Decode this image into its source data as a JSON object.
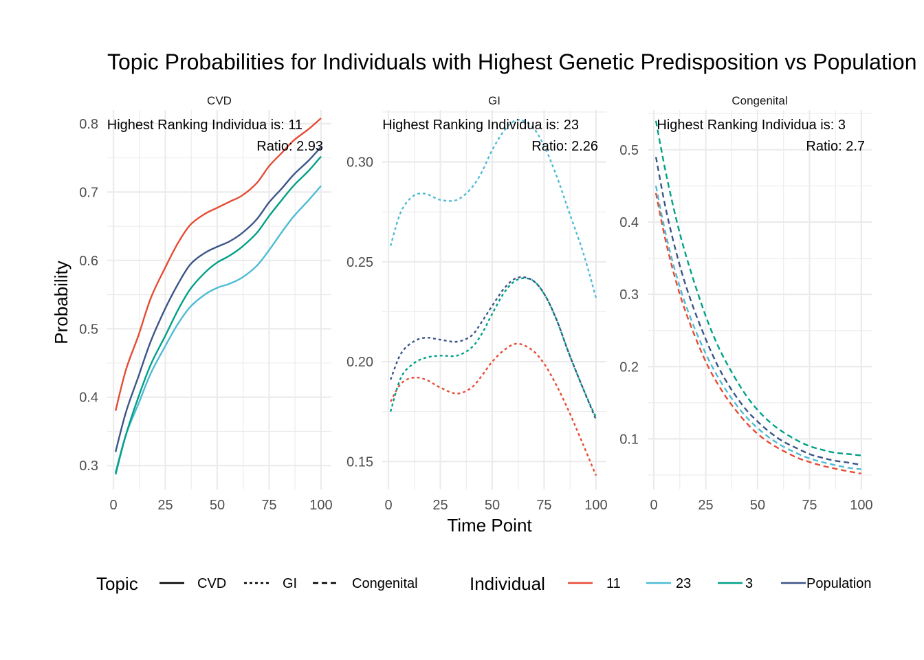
{
  "chart_data": {
    "type": "line",
    "title": "Topic Probabilities for Individuals with Highest Genetic Predisposition vs Population",
    "xlabel": "Time Point",
    "ylabel": "Probability",
    "grid": true,
    "legend_placement": "bottom",
    "legends": {
      "topic": {
        "title": "Topic",
        "entries": [
          {
            "label": "CVD",
            "linetype": "solid"
          },
          {
            "label": "GI",
            "linetype": "dotted"
          },
          {
            "label": "Congenital",
            "linetype": "dashed"
          }
        ]
      },
      "individual": {
        "title": "Individual",
        "entries": [
          {
            "label": "11",
            "color": "#E64B35"
          },
          {
            "label": "23",
            "color": "#4DBBD5"
          },
          {
            "label": "3",
            "color": "#00A087"
          },
          {
            "label": "Population",
            "color": "#3C5488"
          }
        ]
      }
    },
    "panels": [
      {
        "strip": "CVD",
        "linetype": "solid",
        "annotation_line1": "Highest Ranking Individua is: 11",
        "annotation_line2": "Ratio: 2.93",
        "xlim": [
          -3,
          105
        ],
        "ylim": [
          0.265,
          0.82
        ],
        "xticks": [
          0,
          25,
          50,
          75,
          100
        ],
        "xtick_labels": [
          "0",
          "25",
          "50",
          "75",
          "100"
        ],
        "yticks": [
          0.3,
          0.4,
          0.5,
          0.6,
          0.7,
          0.8
        ],
        "ytick_labels": [
          "0.3",
          "0.4",
          "0.5",
          "0.6",
          "0.7",
          "0.8"
        ],
        "x": [
          1,
          6,
          12,
          18,
          25,
          31,
          37,
          44,
          50,
          56,
          62,
          69,
          75,
          81,
          87,
          94,
          100
        ],
        "series": [
          {
            "name": "11",
            "values": [
              0.38,
              0.44,
              0.49,
              0.545,
              0.59,
              0.625,
              0.652,
              0.668,
              0.677,
              0.686,
              0.695,
              0.713,
              0.738,
              0.757,
              0.776,
              0.792,
              0.808
            ]
          },
          {
            "name": "23",
            "values": [
              0.29,
              0.345,
              0.39,
              0.435,
              0.475,
              0.507,
              0.532,
              0.55,
              0.56,
              0.566,
              0.575,
              0.592,
              0.615,
              0.641,
              0.665,
              0.688,
              0.709
            ]
          },
          {
            "name": "3",
            "values": [
              0.287,
              0.345,
              0.4,
              0.448,
              0.49,
              0.527,
              0.558,
              0.582,
              0.597,
              0.607,
              0.62,
              0.64,
              0.665,
              0.688,
              0.71,
              0.731,
              0.752
            ]
          },
          {
            "name": "Population",
            "values": [
              0.32,
              0.378,
              0.43,
              0.482,
              0.53,
              0.565,
              0.594,
              0.611,
              0.62,
              0.628,
              0.64,
              0.66,
              0.685,
              0.705,
              0.726,
              0.746,
              0.766
            ]
          }
        ]
      },
      {
        "strip": "GI",
        "linetype": "dotted",
        "annotation_line1": "Highest Ranking Individua is: 23",
        "annotation_line2": "Ratio: 2.26",
        "xlim": [
          -3,
          105
        ],
        "ylim": [
          0.136,
          0.326
        ],
        "xticks": [
          0,
          25,
          50,
          75,
          100
        ],
        "xtick_labels": [
          "0",
          "25",
          "50",
          "75",
          "100"
        ],
        "yticks": [
          0.15,
          0.2,
          0.25,
          0.3
        ],
        "ytick_labels": [
          "0.15",
          "0.20",
          "0.25",
          "0.30"
        ],
        "x": [
          1,
          6,
          12,
          18,
          25,
          33,
          40,
          45,
          50,
          56,
          62,
          69,
          75,
          81,
          87,
          94,
          100
        ],
        "series": [
          {
            "name": "11",
            "values": [
              0.18,
              0.189,
              0.192,
              0.191,
              0.187,
              0.184,
              0.187,
              0.193,
              0.2,
              0.206,
              0.209,
              0.206,
              0.199,
              0.188,
              0.175,
              0.158,
              0.143
            ]
          },
          {
            "name": "23",
            "values": [
              0.258,
              0.275,
              0.283,
              0.284,
              0.281,
              0.281,
              0.287,
              0.295,
              0.306,
              0.316,
              0.321,
              0.318,
              0.308,
              0.293,
              0.275,
              0.254,
              0.232
            ]
          },
          {
            "name": "3",
            "values": [
              0.175,
              0.192,
              0.199,
              0.202,
              0.203,
              0.203,
              0.207,
              0.214,
              0.224,
              0.235,
              0.241,
              0.241,
              0.234,
              0.221,
              0.204,
              0.186,
              0.172
            ]
          },
          {
            "name": "Population",
            "values": [
              0.191,
              0.204,
              0.21,
              0.212,
              0.211,
              0.21,
              0.213,
              0.22,
              0.228,
              0.237,
              0.242,
              0.241,
              0.234,
              0.221,
              0.204,
              0.186,
              0.171
            ]
          }
        ]
      },
      {
        "strip": "Congenital",
        "linetype": "dashed",
        "annotation_line1": "Highest Ranking Individua is: 3",
        "annotation_line2": "Ratio: 2.7",
        "xlim": [
          -3,
          105
        ],
        "ylim": [
          0.03,
          0.555
        ],
        "xticks": [
          0,
          25,
          50,
          75,
          100
        ],
        "xtick_labels": [
          "0",
          "25",
          "50",
          "75",
          "100"
        ],
        "yticks": [
          0.1,
          0.2,
          0.3,
          0.4,
          0.5
        ],
        "ytick_labels": [
          "0.1",
          "0.2",
          "0.3",
          "0.4",
          "0.5"
        ],
        "x": [
          1,
          6,
          12,
          18,
          25,
          31,
          37,
          44,
          50,
          56,
          62,
          69,
          75,
          81,
          87,
          94,
          100
        ],
        "series": [
          {
            "name": "11",
            "values": [
              0.44,
              0.37,
              0.305,
              0.255,
              0.207,
              0.175,
              0.149,
              0.124,
              0.107,
              0.094,
              0.084,
              0.074,
              0.068,
              0.063,
              0.059,
              0.055,
              0.052
            ]
          },
          {
            "name": "23",
            "values": [
              0.45,
              0.38,
              0.315,
              0.265,
              0.218,
              0.185,
              0.158,
              0.132,
              0.115,
              0.101,
              0.09,
              0.08,
              0.073,
              0.068,
              0.064,
              0.06,
              0.058
            ]
          },
          {
            "name": "3",
            "values": [
              0.54,
              0.465,
              0.39,
              0.33,
              0.27,
              0.228,
              0.195,
              0.162,
              0.14,
              0.123,
              0.11,
              0.098,
              0.09,
              0.085,
              0.081,
              0.079,
              0.077
            ]
          },
          {
            "name": "Population",
            "values": [
              0.49,
              0.415,
              0.345,
              0.29,
              0.238,
              0.2,
              0.17,
              0.142,
              0.124,
              0.109,
              0.097,
              0.087,
              0.079,
              0.074,
              0.07,
              0.067,
              0.064
            ]
          }
        ]
      }
    ]
  }
}
